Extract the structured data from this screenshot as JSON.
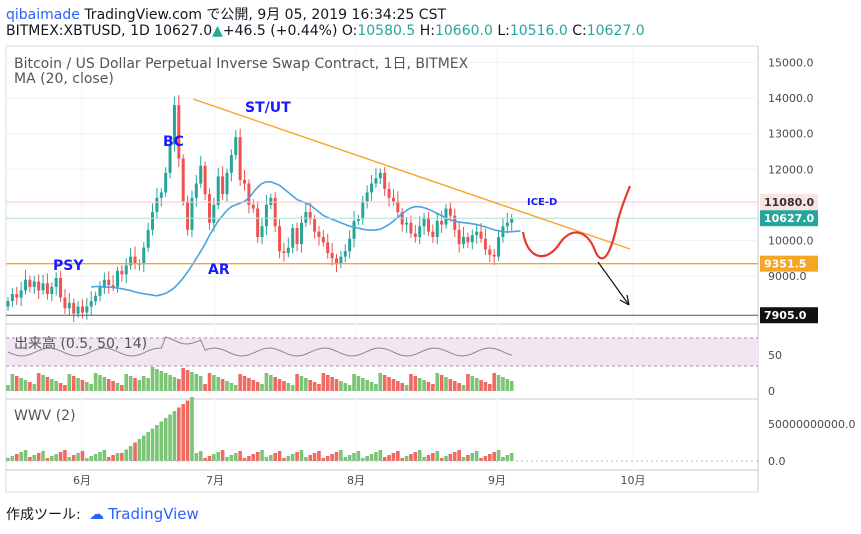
{
  "header": {
    "author": "qibaimade",
    "published": "TradingView.com で公開, 9月 05, 2019 16:34:25 CST",
    "symbol_line": "BITMEX:XBTUSD, 1D",
    "last": "10627.0",
    "change": "+46.5 (+0.44%)",
    "o_label": "O:",
    "o_value": "10580.5",
    "h_label": "H:",
    "h_value": "10660.0",
    "l_label": "L:",
    "l_value": "10516.0",
    "c_label": "C:",
    "c_value": "10627.0"
  },
  "main_legend": {
    "title": "Bitcoin / US Dollar Perpetual Inverse Swap Contract, 1日, BITMEX",
    "ma": "MA (20, close)"
  },
  "volume_legend": "出来高 (0.5, 50, 14)",
  "wwv_legend": "WWV (2)",
  "footer": {
    "label": "作成ツール:",
    "brand": "TradingView"
  },
  "colors": {
    "up": "#26a69a",
    "down": "#ef5350",
    "ma": "#4aa3e0",
    "trendline": "#f5a623",
    "support": "#f5a623",
    "projection": "#e53935",
    "annotation": "#1a1aff",
    "vol_up": "#7cc576",
    "vol_down": "#f06a64"
  },
  "chart_data": [
    {
      "type": "candlestick",
      "title": "Bitcoin / US Dollar Perpetual Inverse Swap Contract, 1日, BITMEX",
      "x_tick_labels": [
        "6月",
        "7月",
        "8月",
        "9月",
        "10月"
      ],
      "y_ticks": [
        9000,
        10000,
        11000,
        12000,
        13000,
        14000,
        15000
      ],
      "y_tick_labels": [
        "9000.0",
        "10000.0",
        "11000.0",
        "12000.0",
        "13000.0",
        "14000.0",
        "15000.0"
      ],
      "ylim": [
        7700,
        15700
      ],
      "price_labels": [
        {
          "value": 10627,
          "text": "10627.0",
          "kind": "last"
        },
        {
          "value": 9351.5,
          "text": "9351.5",
          "kind": "support"
        },
        {
          "value": 7905,
          "text": "7905.0",
          "kind": "low"
        },
        {
          "value": 11080,
          "text": "11080.0",
          "kind": "high"
        }
      ],
      "annotations": [
        "PSY",
        "BC",
        "AR",
        "ST/UT",
        "ICE-D"
      ],
      "close_series": [
        8300,
        8500,
        8400,
        8600,
        8900,
        8700,
        8850,
        8600,
        8800,
        8500,
        8700,
        8950,
        8400,
        8100,
        8250,
        7950,
        8150,
        7980,
        8150,
        8300,
        8450,
        8700,
        8900,
        8750,
        8700,
        9150,
        9050,
        9300,
        9550,
        9350,
        9350,
        9800,
        10300,
        10800,
        11200,
        11350,
        11900,
        12700,
        13800,
        12300,
        11100,
        10300,
        11200,
        11600,
        12100,
        11300,
        10500,
        11000,
        11800,
        11300,
        11900,
        12400,
        12900,
        11700,
        11600,
        11000,
        10900,
        10100,
        10400,
        11000,
        11200,
        10400,
        9700,
        9650,
        9800,
        10350,
        9900,
        10500,
        10800,
        10600,
        10250,
        10100,
        9950,
        9650,
        9500,
        9350,
        9550,
        9700,
        10050,
        10550,
        10600,
        11100,
        11350,
        11600,
        11750,
        11900,
        11450,
        11200,
        11100,
        10800,
        10450,
        10500,
        10200,
        10100,
        10400,
        10650,
        10250,
        10100,
        10550,
        10450,
        10900,
        10700,
        10300,
        9900,
        10100,
        9950,
        10150,
        10250,
        10050,
        9750,
        9600,
        9550,
        10100,
        10400,
        10500,
        10627
      ],
      "ma20": [
        8700,
        8710,
        8710,
        8690,
        8700,
        8680,
        8670,
        8650,
        8620,
        8600,
        8560,
        8530,
        8510,
        8490,
        8470,
        8450,
        8480,
        8520,
        8590,
        8680,
        8800,
        8950,
        9120,
        9300,
        9500,
        9700,
        9900,
        10150,
        10350,
        10550,
        10700,
        10850,
        10950,
        11000,
        11050,
        11100,
        11200,
        11350,
        11500,
        11600,
        11650,
        11650,
        11600,
        11550,
        11450,
        11350,
        11250,
        11150,
        11100,
        11050,
        11000,
        10900,
        10800,
        10700,
        10650,
        10600,
        10550,
        10500,
        10450,
        10400,
        10380,
        10350,
        10320,
        10300,
        10290,
        10300,
        10320,
        10380,
        10450,
        10550,
        10650,
        10750,
        10850,
        10920,
        10950,
        10950,
        10920,
        10880,
        10820,
        10760,
        10700,
        10640,
        10580,
        10540,
        10520,
        10500,
        10490,
        10470,
        10450,
        10420,
        10380,
        10340,
        10300,
        10270,
        10250,
        10240,
        10250,
        10260,
        10270
      ]
    },
    {
      "type": "line",
      "title": "出来高 (0.5, 50, 14)",
      "y_ticks": [
        0,
        50
      ],
      "y_tick_labels": [
        "0",
        "50"
      ],
      "ylim": [
        0,
        100
      ],
      "band": [
        30,
        70
      ]
    },
    {
      "type": "bar",
      "title": "WWV (2)",
      "y_ticks": [
        0,
        50000000000
      ],
      "y_tick_labels": [
        "0.0",
        "50000000000.0"
      ]
    }
  ]
}
